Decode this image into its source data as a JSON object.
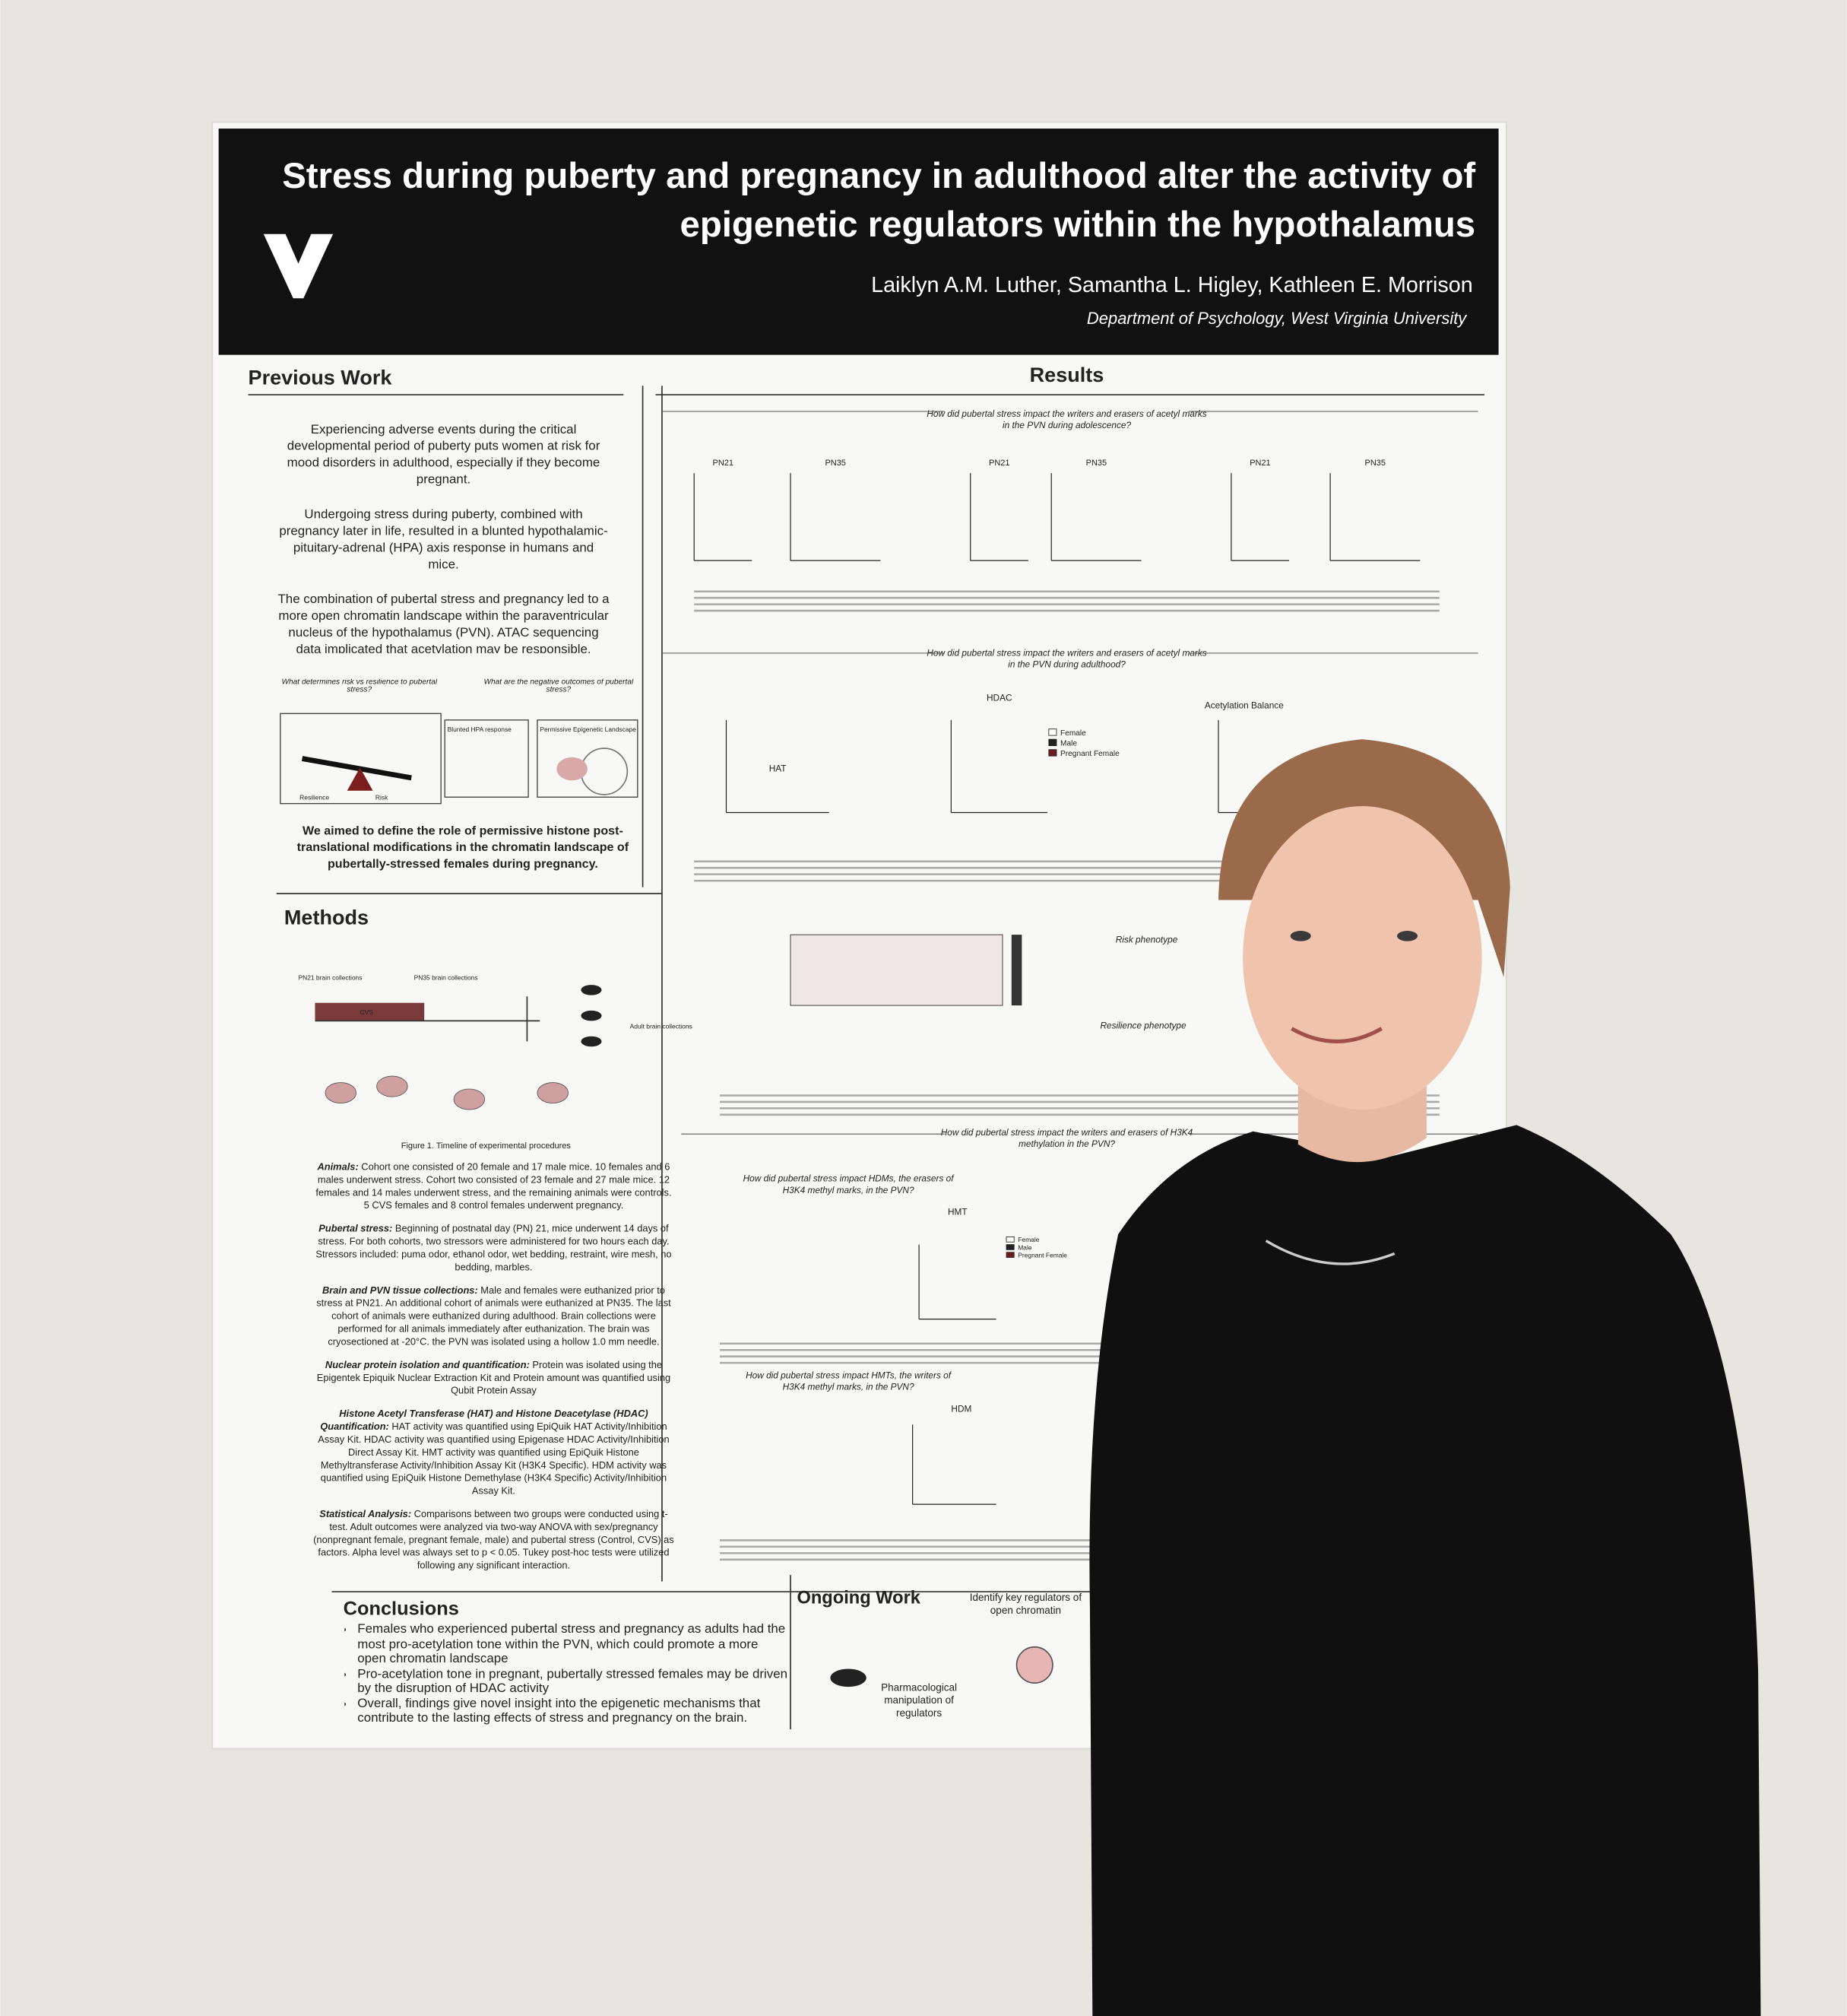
{
  "header": {
    "title": [
      "Stress during puberty and pregnancy in adulthood alter the activity of",
      "epigenetic regulators within the hypothalamus"
    ],
    "authors": "Laiklyn A.M. Luther, Samantha L. Higley, Kathleen E. Morrison",
    "affiliation": "Department of Psychology, West Virginia University"
  },
  "previous_work": {
    "heading": "Previous Work",
    "paragraphs": [
      "Experiencing adverse events during the critical developmental period of puberty puts women at risk for mood disorders in adulthood, especially if they become pregnant.",
      "Undergoing stress during puberty, combined with pregnancy later in life, resulted in a blunted hypothalamic-pituitary-adrenal (HPA) axis response in humans and mice.",
      "The combination of pubertal stress and pregnancy led to a more open chromatin landscape within the paraventricular nucleus of the hypothalamus (PVN). ATAC sequencing data implicated that acetylation may be responsible."
    ],
    "figure_questions": [
      "What determines risk vs resilience to pubertal stress?",
      "What are the negative outcomes of pubertal stress?"
    ],
    "figure_labels": [
      "Resilience",
      "Risk",
      "Blunted HPA response",
      "Permissive Epigenetic Landscape"
    ],
    "aim": "We aimed to define the role of permissive histone post-translational modifications in the chromatin landscape of pubertally-stressed females during pregnancy."
  },
  "methods": {
    "heading": "Methods",
    "figure_caption": "Figure 1. Timeline of experimental procedures",
    "timeline_labels": [
      "PN21 brain collections",
      "PN35 brain collections",
      "CVS",
      "Adult brain collections"
    ],
    "items": [
      {
        "label": "Animals:",
        "text": "Cohort one consisted of 20 female and 17 male mice. 10 females and 6 males underwent stress. Cohort two consisted of 23 female and 27 male mice. 12 females and 14 males underwent stress, and the remaining animals were controls. 5 CVS females and 8 control females underwent pregnancy."
      },
      {
        "label": "Pubertal stress:",
        "text": "Beginning of postnatal day (PN) 21, mice underwent 14 days of stress. For both cohorts, two stressors were administered for two hours each day. Stressors included: puma odor, ethanol odor, wet bedding, restraint, wire mesh, no bedding, marbles."
      },
      {
        "label": "Brain and PVN tissue collections:",
        "text": "Male and females were euthanized prior to stress at PN21. An additional cohort of animals were euthanized at PN35. The last cohort of animals were euthanized during adulthood. Brain collections were performed for all animals immediately after euthanization. The brain was cryosectioned at -20°C. the PVN was isolated using a hollow 1.0 mm needle."
      },
      {
        "label": "Nuclear protein isolation and quantification:",
        "text": "Protein was isolated using the Epigentek Epiquik Nuclear Extraction Kit and Protein amount was quantified using Qubit Protein Assay"
      },
      {
        "label": "Histone Acetyl Transferase (HAT) and Histone Deacetylase (HDAC) Quantification:",
        "text": "HAT activity was quantified using EpiQuik HAT Activity/Inhibition Assay Kit. HDAC activity was quantified using Epigenase HDAC Activity/Inhibition Direct Assay Kit. HMT activity was quantified using EpiQuik Histone Methyltransferase Activity/Inhibition Assay Kit (H3K4 Specific). HDM activity was quantified using EpiQuik Histone Demethylase (H3K4 Specific) Activity/Inhibition Assay Kit."
      },
      {
        "label": "Statistical Analysis:",
        "text": "Comparisons between two groups were conducted using t-test. Adult outcomes were analyzed via two-way ANOVA with sex/pregnancy (nonpregnant female, pregnant female, male) and pubertal stress (Control, CVS) as factors. Alpha level was always set to p < 0.05. Tukey post-hoc tests were utilized following any significant interaction."
      }
    ]
  },
  "results": {
    "heading": "Results",
    "questions": [
      "How did pubertal stress impact the writers and erasers of acetyl marks in the PVN during adolescence?",
      "How did pubertal stress impact the writers and erasers of acetyl marks in the PVN during adulthood?",
      "How did pubertal stress impact the writers and erasers of H3K4 methylation in the PVN?",
      "How did pubertal stress impact HDMs, the erasers of H3K4 methyl marks, in the PVN?",
      "How did pubertal stress impact HMTs, the writers of H3K4 methyl marks, in the PVN?"
    ],
    "adolescent_panels": [
      "PN21",
      "PN35",
      "PN21",
      "PN35",
      "PN21",
      "PN35"
    ],
    "adult_panels": [
      "HAT",
      "HDAC",
      "Acetylation Balance"
    ],
    "methyl_panels": [
      "HMT",
      "HDM"
    ],
    "legend": [
      "Female",
      "Male",
      "Pregnant Female"
    ],
    "phenotypes": [
      "Risk phenotype",
      "Resilience phenotype"
    ]
  },
  "conclusions": {
    "heading": "Conclusions",
    "bullets": [
      "Females who experienced pubertal stress and pregnancy as adults had the most pro-acetylation tone within the PVN, which could promote a more open chromatin landscape",
      "Pro-acetylation tone in pregnant, pubertally stressed females may be driven by the disruption of HDAC activity",
      "Overall, findings give novel insight into the epigenetic mechanisms that contribute to the lasting effects of stress and pregnancy on the brain."
    ]
  },
  "ongoing_work": {
    "heading": "Ongoing Work",
    "labels": [
      "Identify key regulators of open chromatin",
      "Pharmacological manipulation of regulators"
    ]
  }
}
